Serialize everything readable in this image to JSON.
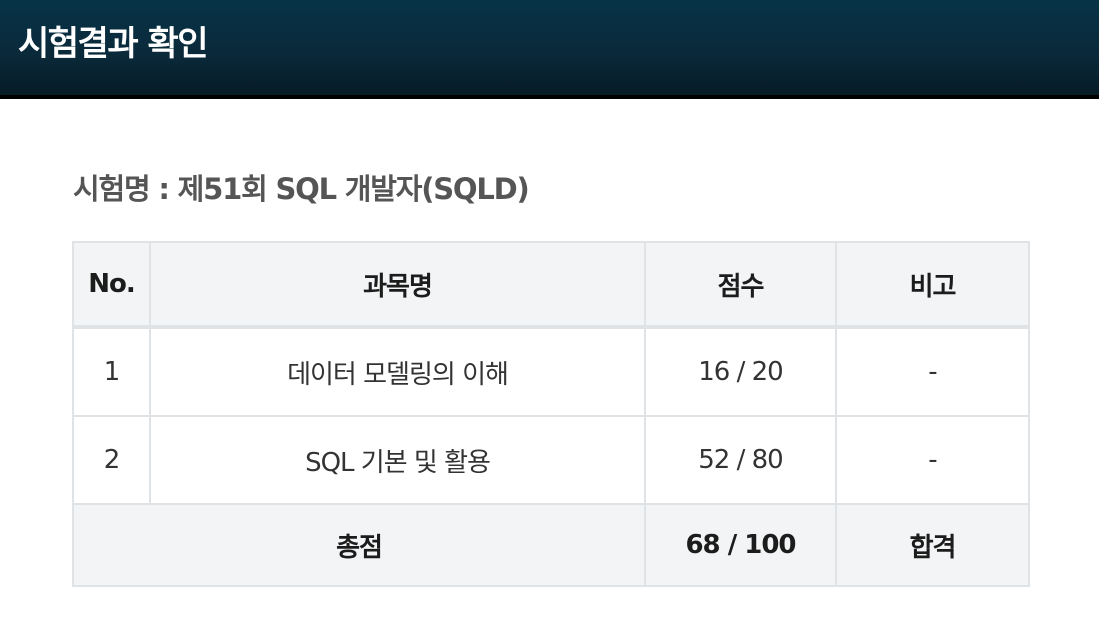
{
  "header": {
    "title": "시험결과 확인"
  },
  "exam": {
    "name_line": "시험명 : 제51회 SQL 개발자(SQLD)"
  },
  "table": {
    "columns": [
      "No.",
      "과목명",
      "점수",
      "비고"
    ],
    "rows": [
      {
        "no": "1",
        "subject": "데이터 모델링의 이해",
        "score": "16 / 20",
        "note": "-"
      },
      {
        "no": "2",
        "subject": "SQL 기본 및 활용",
        "score": "52 / 80",
        "note": "-"
      }
    ],
    "total": {
      "label": "총점",
      "score": "68 / 100",
      "result": "합격"
    }
  },
  "colors": {
    "header_bg": "#0a2a3b",
    "header_text": "#ffffff",
    "table_head_bg": "#f2f4f5",
    "table_border": "#dfe3e6",
    "exam_name_text": "#555555"
  }
}
